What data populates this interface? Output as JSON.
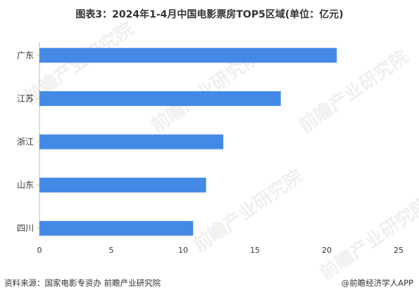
{
  "title": "图表3：2024年1-4月中国电影票房TOP5区域(单位：亿元)",
  "source": "资料来源：国家电影专资办 前瞻产业研究院",
  "brand": "@前瞻经济学人APP",
  "watermark": "前瞻产业研究院",
  "colors": {
    "bar": "#4589e6",
    "axis": "#bfbfbf",
    "text": "#333333"
  },
  "chart_data": {
    "type": "bar",
    "orientation": "horizontal",
    "categories": [
      "广东",
      "江苏",
      "浙江",
      "山东",
      "四川"
    ],
    "values": [
      20.7,
      16.8,
      12.8,
      11.6,
      10.7
    ],
    "xlim": [
      0,
      25
    ],
    "xticks": [
      0,
      5,
      10,
      15,
      20,
      25
    ],
    "grid": false,
    "legend": "none"
  }
}
